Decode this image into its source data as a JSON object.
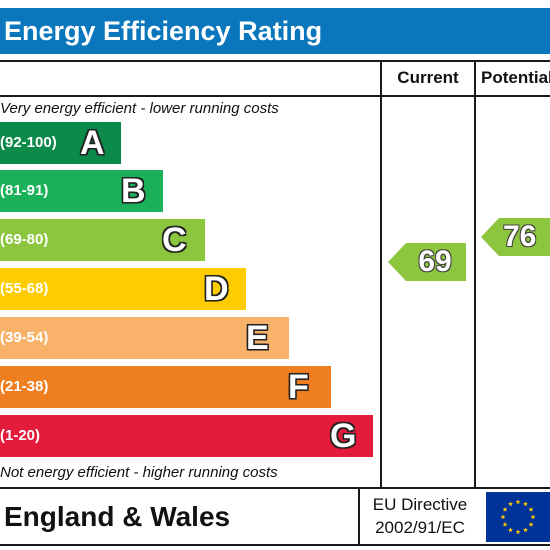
{
  "title": "Energy Efficiency Rating",
  "columns": {
    "current": "Current",
    "potential": "Potential"
  },
  "captions": {
    "top": "Very energy efficient - lower running costs",
    "bottom": "Not energy efficient - higher running costs"
  },
  "bands": [
    {
      "range": "(92-100)",
      "letter": "A",
      "color": "#0c8a4a"
    },
    {
      "range": "(81-91)",
      "letter": "B",
      "color": "#1bb05a"
    },
    {
      "range": "(69-80)",
      "letter": "C",
      "color": "#8cc63e"
    },
    {
      "range": "(55-68)",
      "letter": "D",
      "color": "#ffcc00"
    },
    {
      "range": "(39-54)",
      "letter": "E",
      "color": "#f8b26a"
    },
    {
      "range": "(21-38)",
      "letter": "F",
      "color": "#f07f22"
    },
    {
      "range": "(1-20)",
      "letter": "G",
      "color": "#e41b3a"
    }
  ],
  "ratings": {
    "current": {
      "value": "69",
      "band": "C",
      "color": "#8cc63e"
    },
    "potential": {
      "value": "76",
      "band": "C",
      "color": "#8cc63e"
    }
  },
  "footer": {
    "region": "England & Wales",
    "directive_line1": "EU Directive",
    "directive_line2": "2002/91/EC",
    "flag_icon": "eu-flag-icon",
    "flag_color": "#003399",
    "star_color": "#ffcc00"
  }
}
